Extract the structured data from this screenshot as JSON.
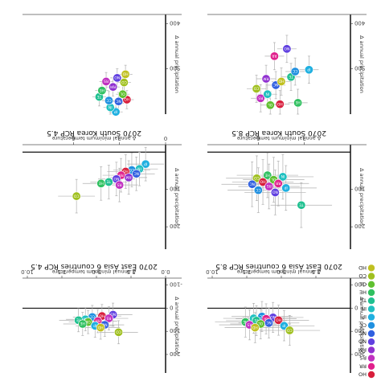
{
  "figure": {
    "orientation": "rotated-180",
    "background": "#ffffff",
    "panel_border": "#555555",
    "errorbar_color": "#b0b0b0"
  },
  "legend": {
    "placement": "bottom-right",
    "entries": [
      {
        "code": "HO",
        "color": "#d81e3c"
      },
      {
        "code": "RR",
        "color": "#e0208c"
      },
      {
        "code": "RS",
        "color": "#c030c0"
      },
      {
        "code": "RM",
        "color": "#9030d0"
      },
      {
        "code": "NO",
        "color": "#6040e0"
      },
      {
        "code": "NC",
        "color": "#3060e0"
      },
      {
        "code": "CC",
        "color": "#2090e0"
      },
      {
        "code": "IP",
        "color": "#20b0e0"
      },
      {
        "code": "IN",
        "color": "#20c0c0"
      },
      {
        "code": "TE",
        "color": "#20c090"
      },
      {
        "code": "HE",
        "color": "#30c060"
      },
      {
        "code": "OL",
        "color": "#60c030"
      },
      {
        "code": "CO",
        "color": "#a0c020"
      },
      {
        "code": "HD",
        "color": "#c0c020"
      }
    ]
  },
  "chart_data": [
    {
      "type": "scatter",
      "panel": "row1-left",
      "title": "",
      "xlabel": "",
      "ylabel": "Δ annual precipitation",
      "yticks": [
        "400",
        "500"
      ],
      "ylim": [
        380,
        600
      ],
      "xlim": [
        0,
        10
      ],
      "points": [
        {
          "x": 3.6,
          "y": 595,
          "c": "IP"
        },
        {
          "x": 4.0,
          "y": 585,
          "c": "IN"
        },
        {
          "x": 3.4,
          "y": 572,
          "c": "NC"
        },
        {
          "x": 4.1,
          "y": 570,
          "c": "CC"
        },
        {
          "x": 2.8,
          "y": 568,
          "c": "HO"
        },
        {
          "x": 4.8,
          "y": 562,
          "c": "TE"
        },
        {
          "x": 3.1,
          "y": 556,
          "c": "OL"
        },
        {
          "x": 4.6,
          "y": 548,
          "c": "HE"
        },
        {
          "x": 3.8,
          "y": 540,
          "c": "RM"
        },
        {
          "x": 3.0,
          "y": 530,
          "c": "CO"
        },
        {
          "x": 4.3,
          "y": 528,
          "c": "RS"
        },
        {
          "x": 3.5,
          "y": 520,
          "c": "NO"
        },
        {
          "x": 2.9,
          "y": 512,
          "c": "HD"
        }
      ],
      "errors_x": 0.5,
      "errors_y": 20
    },
    {
      "type": "scatter",
      "panel": "row1-right",
      "title": "",
      "xlabel": "",
      "ylabel": "Δ annual precipitation",
      "yticks": [
        "400",
        "500"
      ],
      "ylim": [
        380,
        600
      ],
      "xlim": [
        0,
        10
      ],
      "points": [
        {
          "x": 5.8,
          "y": 580,
          "c": "OL"
        },
        {
          "x": 5.1,
          "y": 578,
          "c": "HO"
        },
        {
          "x": 3.8,
          "y": 575,
          "c": "HE"
        },
        {
          "x": 6.5,
          "y": 565,
          "c": "RS"
        },
        {
          "x": 6.0,
          "y": 556,
          "c": "IN"
        },
        {
          "x": 6.8,
          "y": 544,
          "c": "CO"
        },
        {
          "x": 5.4,
          "y": 536,
          "c": "NC"
        },
        {
          "x": 5.0,
          "y": 528,
          "c": "HD"
        },
        {
          "x": 6.1,
          "y": 522,
          "c": "RM"
        },
        {
          "x": 4.3,
          "y": 518,
          "c": "TE"
        },
        {
          "x": 4.0,
          "y": 506,
          "c": "CC"
        },
        {
          "x": 3.0,
          "y": 502,
          "c": "IP"
        },
        {
          "x": 5.5,
          "y": 472,
          "c": "RR"
        },
        {
          "x": 4.6,
          "y": 456,
          "c": "NO"
        }
      ],
      "errors_x": 0.7,
      "errors_y": 30
    },
    {
      "type": "scatter",
      "panel": "row2-left",
      "title": "2070 South Korea RCP 4.5",
      "xlabel": "Δ annual minimum temperature",
      "xticks": [
        "0",
        "3",
        "6"
      ],
      "xlim": [
        0,
        9
      ],
      "ylabel": "Δ annual precipitation",
      "yticks": [
        "100",
        "200"
      ],
      "ylim": [
        -20,
        260
      ],
      "points": [
        {
          "x": 1.3,
          "y": 32,
          "c": "IP"
        },
        {
          "x": 1.7,
          "y": 45,
          "c": "IN"
        },
        {
          "x": 2.2,
          "y": 48,
          "c": "CC"
        },
        {
          "x": 2.6,
          "y": 52,
          "c": "HO"
        },
        {
          "x": 1.9,
          "y": 58,
          "c": "NC"
        },
        {
          "x": 2.9,
          "y": 62,
          "c": "RR"
        },
        {
          "x": 2.4,
          "y": 68,
          "c": "RM"
        },
        {
          "x": 3.2,
          "y": 72,
          "c": "NO"
        },
        {
          "x": 3.7,
          "y": 80,
          "c": "TE"
        },
        {
          "x": 4.2,
          "y": 84,
          "c": "HE"
        },
        {
          "x": 3.0,
          "y": 88,
          "c": "RS"
        },
        {
          "x": 5.8,
          "y": 118,
          "c": "CO"
        }
      ],
      "errors_x": 1.2,
      "errors_y": 45
    },
    {
      "type": "scatter",
      "panel": "row2-right",
      "title": "2070 South Korea RCP 8.5",
      "xlabel": "Δ annual minimum temperature",
      "xticks": [
        "3",
        "6"
      ],
      "xlim": [
        0,
        9
      ],
      "ylabel": "Δ annual precipitation",
      "yticks": [
        "100",
        "200"
      ],
      "ylim": [
        -20,
        260
      ],
      "points": [
        {
          "x": 5.4,
          "y": 62,
          "c": "HE"
        },
        {
          "x": 4.4,
          "y": 66,
          "c": "IN"
        },
        {
          "x": 6.1,
          "y": 70,
          "c": "CO"
        },
        {
          "x": 5.0,
          "y": 74,
          "c": "OL"
        },
        {
          "x": 5.7,
          "y": 80,
          "c": "HO"
        },
        {
          "x": 4.7,
          "y": 84,
          "c": "RR"
        },
        {
          "x": 6.4,
          "y": 86,
          "c": "NC"
        },
        {
          "x": 5.3,
          "y": 92,
          "c": "RS"
        },
        {
          "x": 4.2,
          "y": 96,
          "c": "IP"
        },
        {
          "x": 6.0,
          "y": 102,
          "c": "CC"
        },
        {
          "x": 4.9,
          "y": 108,
          "c": "NO"
        },
        {
          "x": 3.2,
          "y": 142,
          "c": "TE"
        }
      ],
      "errors_x": 2.0,
      "errors_y": 60
    },
    {
      "type": "scatter",
      "panel": "row3-left",
      "title": "2070 East Asia 6 countries RCP 4.5",
      "xlabel": "Δ annual minimum temperature",
      "xticks": [
        "0.0",
        "2.5",
        "5.0",
        "7.5",
        "10.0"
      ],
      "xlim": [
        0,
        10
      ],
      "ylabel": "Δ annual precipitation",
      "yticks": [
        "-100",
        "0",
        "100",
        "200"
      ],
      "ylim": [
        -130,
        280
      ],
      "points": [
        {
          "x": 3.8,
          "y": 28,
          "c": "NO"
        },
        {
          "x": 4.6,
          "y": 34,
          "c": "HO"
        },
        {
          "x": 5.3,
          "y": 38,
          "c": "CC"
        },
        {
          "x": 4.1,
          "y": 44,
          "c": "RS"
        },
        {
          "x": 5.8,
          "y": 48,
          "c": "IN"
        },
        {
          "x": 6.3,
          "y": 52,
          "c": "TE"
        },
        {
          "x": 4.9,
          "y": 56,
          "c": "RR"
        },
        {
          "x": 5.6,
          "y": 60,
          "c": "OL"
        },
        {
          "x": 6.0,
          "y": 68,
          "c": "HE"
        },
        {
          "x": 4.4,
          "y": 72,
          "c": "NC"
        },
        {
          "x": 5.1,
          "y": 76,
          "c": "IP"
        },
        {
          "x": 4.7,
          "y": 84,
          "c": "HD"
        },
        {
          "x": 3.4,
          "y": 104,
          "c": "CO"
        }
      ],
      "errors_x": 1.4,
      "errors_y": 50
    },
    {
      "type": "scatter",
      "panel": "row3-right",
      "title": "2070 East Asia 6 countries RCP 8.5",
      "xlabel": "Δ annual minimum temperature",
      "xticks": [
        "2.5",
        "5.0",
        "7.5",
        "10.0"
      ],
      "xlim": [
        0,
        10
      ],
      "ylabel": "Δ annual precipitation",
      "yticks": [
        "-100",
        "0",
        "100",
        "200"
      ],
      "ylim": [
        -130,
        280
      ],
      "points": [
        {
          "x": 6.4,
          "y": 36,
          "c": "CC"
        },
        {
          "x": 5.6,
          "y": 40,
          "c": "NO"
        },
        {
          "x": 7.0,
          "y": 44,
          "c": "IN"
        },
        {
          "x": 6.1,
          "y": 46,
          "c": "RR"
        },
        {
          "x": 5.2,
          "y": 52,
          "c": "HO"
        },
        {
          "x": 6.8,
          "y": 54,
          "c": "TE"
        },
        {
          "x": 7.6,
          "y": 60,
          "c": "HE"
        },
        {
          "x": 5.9,
          "y": 64,
          "c": "NC"
        },
        {
          "x": 6.5,
          "y": 68,
          "c": "OL"
        },
        {
          "x": 7.3,
          "y": 72,
          "c": "RS"
        },
        {
          "x": 4.8,
          "y": 76,
          "c": "IP"
        },
        {
          "x": 6.9,
          "y": 84,
          "c": "HD"
        },
        {
          "x": 4.4,
          "y": 96,
          "c": "CO"
        }
      ],
      "errors_x": 2.2,
      "errors_y": 65
    }
  ]
}
